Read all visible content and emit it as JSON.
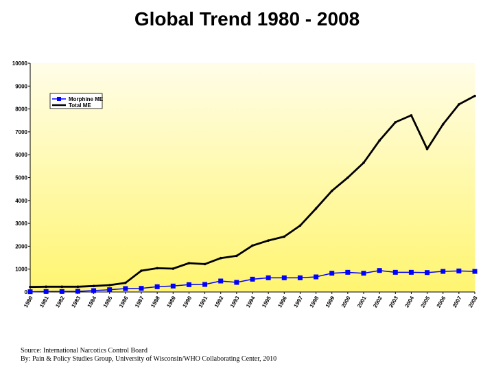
{
  "title": "Global Trend 1980 - 2008",
  "chart_data": {
    "type": "line",
    "title": "Global Trend 1980 - 2008",
    "xlabel": "",
    "ylabel": "",
    "ylim": [
      0,
      10000
    ],
    "yticks": [
      "0",
      "1000",
      "2000",
      "3000",
      "4000",
      "5000",
      "6000",
      "7000",
      "8000",
      "9000",
      "10000"
    ],
    "x": [
      "1980",
      "1981",
      "1982",
      "1983",
      "1984",
      "1985",
      "1986",
      "1987",
      "1988",
      "1989",
      "1990",
      "1991",
      "1992",
      "1993",
      "1994",
      "1995",
      "1996",
      "1997",
      "1998",
      "1999",
      "2000",
      "2001",
      "2002",
      "2003",
      "2004",
      "2005",
      "2006",
      "2007",
      "2008"
    ],
    "series": [
      {
        "name": "Morphine ME",
        "color": "#0000ff",
        "marker": "square",
        "values": [
          10,
          20,
          20,
          30,
          60,
          100,
          150,
          160,
          230,
          260,
          320,
          330,
          480,
          420,
          560,
          620,
          620,
          620,
          660,
          820,
          860,
          820,
          940,
          860,
          860,
          850,
          900,
          920,
          900
        ]
      },
      {
        "name": "Total ME",
        "color": "#000000",
        "marker": "point",
        "values": [
          220,
          230,
          230,
          230,
          260,
          300,
          400,
          930,
          1040,
          1020,
          1260,
          1220,
          1480,
          1580,
          2030,
          2250,
          2420,
          2900,
          3650,
          4420,
          5000,
          5650,
          6620,
          7420,
          7720,
          6250,
          7330,
          8200,
          8570
        ]
      }
    ],
    "legend_position": "top-left",
    "grid": false
  },
  "source": {
    "line1": "Source: International Narcotics Control Board",
    "line2": "By: Pain & Policy Studies Group, University of Wisconsin/WHO Collaborating Center, 2010"
  },
  "colors": {
    "plot_top": "#fffde8",
    "plot_bottom": "#fff570",
    "morphine": "#0000ff",
    "total": "#000000"
  }
}
